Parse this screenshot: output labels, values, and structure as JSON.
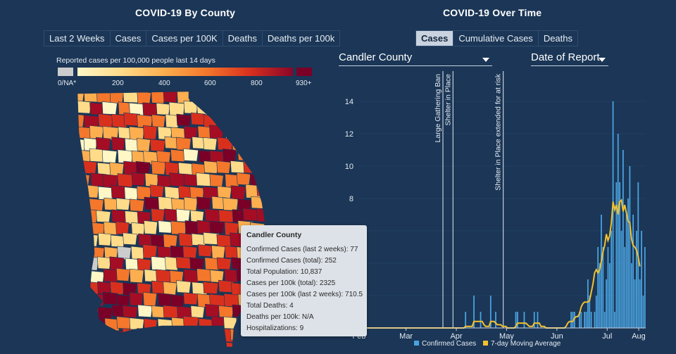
{
  "left_panel": {
    "title": "COVID-19 By County",
    "tabs": [
      "Last 2 Weeks",
      "Cases",
      "Cases per 100K",
      "Deaths",
      "Deaths per 100k"
    ],
    "legend_title": "Reported cases per 100,000 people last 14 days",
    "legend_labels": [
      "0/NA*",
      "200",
      "400",
      "600",
      "800",
      "930+"
    ]
  },
  "right_panel": {
    "title": "COVID-19 Over Time",
    "tabs": [
      "Cases",
      "Cumulative Cases",
      "Deaths"
    ],
    "active_tab": "Cases",
    "county_select": "Candler County",
    "date_select": "Date of Report"
  },
  "tooltip": {
    "title": "Candler County",
    "rows": [
      "Confirmed Cases (last 2 weeks): 77",
      "Confirmed Cases (total): 252",
      "Total Population: 10,837",
      "Cases per 100k (total): 2325",
      "Cases per 100k (last 2 weeks): 710.5",
      "Total Deaths: 4",
      "Deaths per 100k: N/A",
      "Hospitalizations: 9"
    ]
  },
  "colors": {
    "background": "#1b3656",
    "bar": "#4aa3e0",
    "average_line": "#f2c12e",
    "map_scale": [
      "#fff7c6",
      "#fedc8a",
      "#fdae4f",
      "#f4772b",
      "#d9301e",
      "#a50d24",
      "#7a0027"
    ],
    "na": "#cccccc"
  },
  "chart_data": {
    "type": "bar",
    "x_ticks": [
      "Feb",
      "Mar",
      "Apr",
      "May",
      "Jun",
      "Jul",
      "Aug"
    ],
    "y_ticks": [
      "0",
      "2",
      "4",
      "6",
      "8",
      "10",
      "12",
      "14"
    ],
    "ylim": [
      0,
      15
    ],
    "annotations": [
      "Large Gathering Ban",
      "Shelter in Place",
      "Shelter in Place extended for at risk"
    ],
    "legend": [
      "Confirmed Cases",
      "7-day Moving Average"
    ],
    "series": [
      {
        "name": "Confirmed Cases",
        "values": [
          0,
          0,
          0,
          0,
          0,
          0,
          0,
          0,
          0,
          0,
          0,
          0,
          0,
          0,
          0,
          0,
          0,
          0,
          0,
          0,
          0,
          0,
          0,
          0,
          0,
          0,
          0,
          0,
          0,
          0,
          0,
          0,
          0,
          0,
          0,
          0,
          0,
          0,
          0,
          0,
          0,
          0,
          0,
          0,
          0,
          0,
          0,
          0,
          0,
          0,
          0,
          0,
          0,
          0,
          0,
          0,
          0,
          0,
          0,
          0,
          0,
          0,
          0,
          1,
          0,
          0,
          0,
          0,
          2,
          0,
          0,
          0,
          1,
          0,
          0,
          0,
          0,
          0,
          2,
          0,
          0,
          1,
          0,
          0,
          0,
          0,
          0,
          0,
          0,
          0,
          0,
          0,
          0,
          1,
          1,
          0,
          0,
          0,
          1,
          0,
          0,
          0,
          0,
          0,
          1,
          0,
          1,
          0,
          0,
          0,
          0,
          0,
          0,
          0,
          0,
          0,
          0,
          0,
          0,
          0,
          0,
          0,
          0,
          0,
          0,
          0,
          1,
          1,
          1,
          0,
          0,
          1,
          1,
          0,
          1,
          1,
          3,
          2,
          1,
          0,
          1,
          2,
          5,
          4,
          7,
          5,
          1,
          3,
          5,
          4,
          6,
          14,
          1,
          9,
          12,
          9,
          6,
          11,
          5,
          7,
          8,
          10,
          4,
          7,
          3,
          6,
          9,
          3,
          6,
          2,
          5
        ]
      },
      {
        "name": "7-day Moving Average",
        "values": [
          0,
          0,
          0,
          0,
          0,
          0,
          0,
          0,
          0,
          0,
          0,
          0,
          0,
          0,
          0,
          0,
          0,
          0,
          0,
          0,
          0,
          0,
          0,
          0,
          0,
          0,
          0,
          0,
          0,
          0,
          0,
          0,
          0,
          0,
          0,
          0,
          0,
          0,
          0,
          0,
          0,
          0,
          0,
          0,
          0,
          0,
          0,
          0,
          0,
          0,
          0,
          0,
          0,
          0,
          0,
          0,
          0,
          0,
          0,
          0,
          0,
          0,
          0,
          0.1,
          0.1,
          0.1,
          0.1,
          0.1,
          0.4,
          0.4,
          0.4,
          0.4,
          0.4,
          0.4,
          0.2,
          0.1,
          0.1,
          0.1,
          0.4,
          0.4,
          0.4,
          0.3,
          0.2,
          0.2,
          0.2,
          0.1,
          0.1,
          0.1,
          0,
          0,
          0,
          0,
          0,
          0.1,
          0.3,
          0.3,
          0.3,
          0.3,
          0.3,
          0.3,
          0.2,
          0.1,
          0.1,
          0.1,
          0.3,
          0.3,
          0.3,
          0.3,
          0.1,
          0.1,
          0.1,
          0,
          0,
          0,
          0,
          0,
          0,
          0,
          0,
          0,
          0,
          0,
          0,
          0.1,
          0.3,
          0.4,
          0.4,
          0.4,
          0.6,
          0.7,
          0.7,
          0.9,
          1.3,
          1.5,
          1.6,
          1.6,
          1.6,
          1.7,
          2.2,
          2.7,
          3.4,
          3.6,
          3.4,
          3.6,
          4.1,
          4.7,
          5.1,
          5.8,
          5.4,
          5.7,
          6.5,
          7.8,
          7.3,
          7.6,
          7.0,
          7.8,
          7.9,
          7.2,
          7.6,
          7.1,
          6.6,
          6.5,
          5.5,
          5.1,
          5.0,
          4.8,
          4.4,
          3.8
        ]
      }
    ]
  }
}
